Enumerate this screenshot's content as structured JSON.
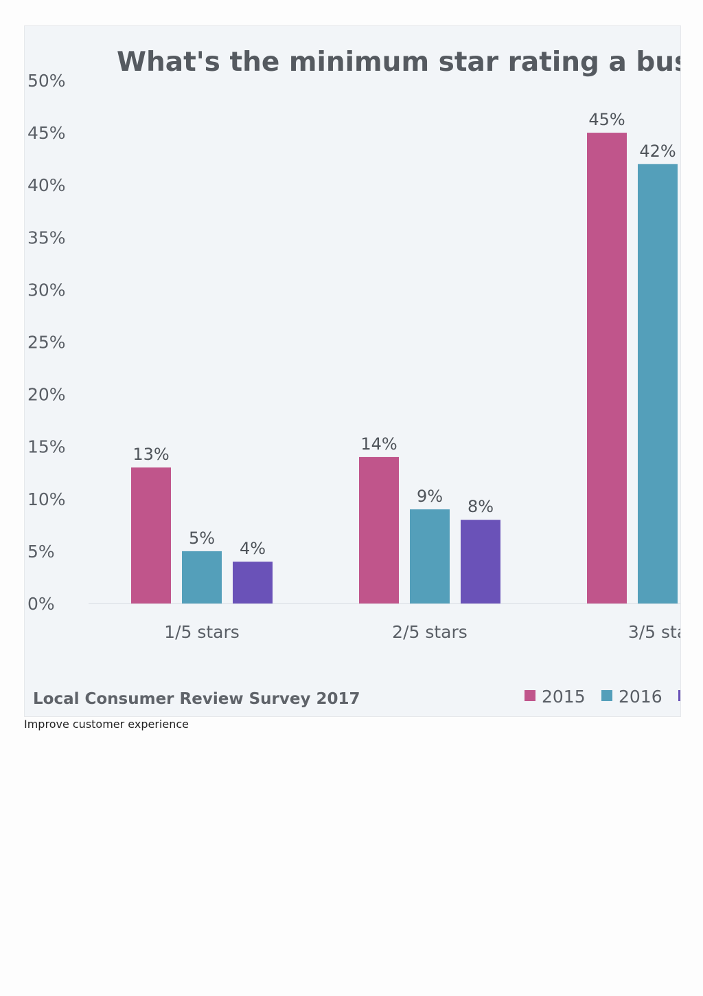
{
  "chart_data": {
    "type": "bar",
    "title": "What's the minimum star rating a busines",
    "categories": [
      "1/5 stars",
      "2/5 stars",
      "3/5 sta"
    ],
    "series": [
      {
        "name": "2015",
        "color": "#c0558b",
        "values": [
          13,
          14,
          45
        ]
      },
      {
        "name": "2016",
        "color": "#549fba",
        "values": [
          5,
          9,
          42
        ]
      },
      {
        "name": "",
        "color": "#6a52b8",
        "values": [
          4,
          8,
          null
        ]
      }
    ],
    "data_labels": [
      [
        "13%",
        "14%",
        "45%"
      ],
      [
        "5%",
        "9%",
        "42%"
      ],
      [
        "4%",
        "8%",
        ""
      ]
    ],
    "y_ticks": [
      "0%",
      "5%",
      "10%",
      "15%",
      "20%",
      "25%",
      "30%",
      "35%",
      "40%",
      "45%",
      "50%"
    ],
    "ylim": [
      0,
      50
    ],
    "grid": false,
    "legend_position": "bottom-right",
    "source": "Local Consumer Review Survey 2017"
  },
  "caption": "Improve customer experience"
}
